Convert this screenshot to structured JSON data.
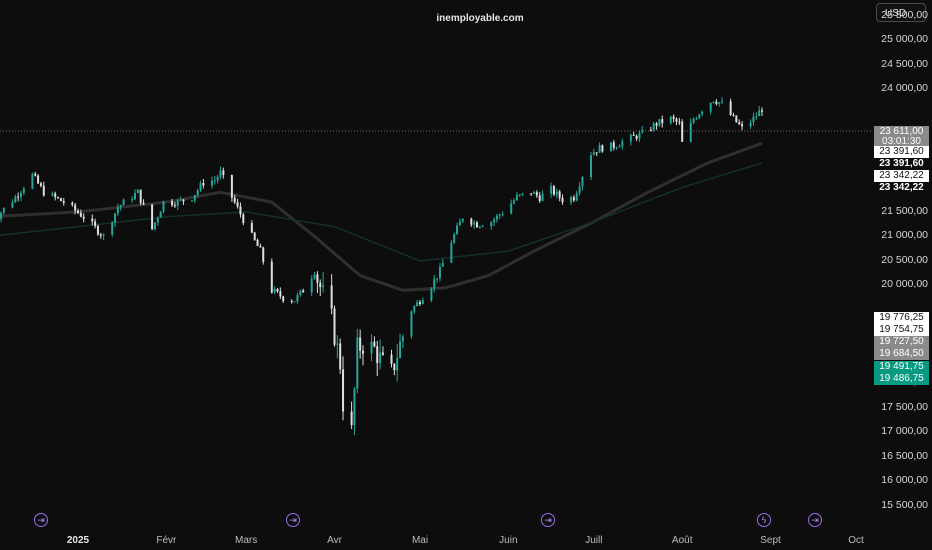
{
  "watermark": "inemployable.com",
  "currency": "USD",
  "colors": {
    "background": "#0d0d0d",
    "candle_up": "#26a69a",
    "candle_down": "#e0e0e0",
    "ma_short": "#2f2f2f",
    "ma_long": "#13302b",
    "event_icon": "#9c6cf0",
    "green_label": "#089981",
    "grey_label": "#8a8a8a"
  },
  "price_labels": [
    {
      "text": "23 611,00",
      "style": "grey"
    },
    {
      "text": "03:01:30",
      "style": "grey"
    },
    {
      "text": "23 391,60",
      "style": "white"
    },
    {
      "text": "23 391,60",
      "style": "dark"
    },
    {
      "text": "23 342,22",
      "style": "white"
    },
    {
      "text": "23 342,22",
      "style": "dark"
    },
    {
      "text": "19 776,25",
      "style": "white"
    },
    {
      "text": "19 754,75",
      "style": "white"
    },
    {
      "text": "19 727,50",
      "style": "grey"
    },
    {
      "text": "19 684,50",
      "style": "grey"
    },
    {
      "text": "19 491,75",
      "style": "green"
    },
    {
      "text": "19 486,75",
      "style": "green"
    }
  ],
  "events": [
    {
      "icon": "forward-icon",
      "glyph": "⇥"
    },
    {
      "icon": "forward-icon",
      "glyph": "⇥"
    },
    {
      "icon": "forward-icon",
      "glyph": "⇥"
    },
    {
      "icon": "lightning-icon",
      "glyph": "ϟ"
    },
    {
      "icon": "forward-icon",
      "glyph": "⇥"
    }
  ],
  "chart_data": {
    "type": "candlestick",
    "title": "",
    "xlabel": "",
    "ylabel": "",
    "ylim": [
      15300,
      25900
    ],
    "y_ticks": [
      "15 500,00",
      "16 000,00",
      "16 500,00",
      "17 000,00",
      "17 500,00",
      "18 000,00",
      "20 000,00",
      "20 500,00",
      "21 000,00",
      "21 500,00",
      "22 000,00",
      "24 000,00",
      "24 500,00",
      "25 000,00",
      "25 500,00"
    ],
    "y_tick_values": [
      15500,
      16000,
      16500,
      17000,
      17500,
      18000,
      20000,
      20500,
      21000,
      21500,
      22000,
      24000,
      24500,
      25000,
      25500
    ],
    "x_ticks": [
      "2025",
      "Févr",
      "Mars",
      "Avr",
      "Mai",
      "Juin",
      "Juill",
      "Août",
      "Sept",
      "Oct"
    ],
    "x_tick_dates": [
      "2025-01-01",
      "2025-02-01",
      "2025-03-01",
      "2025-04-01",
      "2025-05-01",
      "2025-06-01",
      "2025-07-01",
      "2025-08-01",
      "2025-09-01",
      "2025-10-01"
    ],
    "last_price": 23611.0,
    "series": [
      {
        "type": "close",
        "points": [
          [
            "2024-12-01",
            21200
          ],
          [
            "2024-12-05",
            21500
          ],
          [
            "2024-12-10",
            21800
          ],
          [
            "2024-12-16",
            22250
          ],
          [
            "2024-12-20",
            21900
          ],
          [
            "2024-12-27",
            21700
          ],
          [
            "2025-01-03",
            21400
          ],
          [
            "2025-01-10",
            21000
          ],
          [
            "2025-01-15",
            21600
          ],
          [
            "2025-01-22",
            21900
          ],
          [
            "2025-01-27",
            21150
          ],
          [
            "2025-01-31",
            21700
          ],
          [
            "2025-02-05",
            21700
          ],
          [
            "2025-02-10",
            21800
          ],
          [
            "2025-02-14",
            22100
          ],
          [
            "2025-02-18",
            22150
          ],
          [
            "2025-02-20",
            22300
          ],
          [
            "2025-02-24",
            21800
          ],
          [
            "2025-03-03",
            21000
          ],
          [
            "2025-03-06",
            20700
          ],
          [
            "2025-03-10",
            19900
          ],
          [
            "2025-03-14",
            19750
          ],
          [
            "2025-03-18",
            19700
          ],
          [
            "2025-03-21",
            19900
          ],
          [
            "2025-03-25",
            20300
          ],
          [
            "2025-03-28",
            19800
          ],
          [
            "2025-03-31",
            19300
          ],
          [
            "2025-04-03",
            18400
          ],
          [
            "2025-04-04",
            17600
          ],
          [
            "2025-04-07",
            17000
          ],
          [
            "2025-04-09",
            18700
          ],
          [
            "2025-04-11",
            18800
          ],
          [
            "2025-04-15",
            18700
          ],
          [
            "2025-04-18",
            18400
          ],
          [
            "2025-04-21",
            18200
          ],
          [
            "2025-04-24",
            18800
          ],
          [
            "2025-04-28",
            19500
          ],
          [
            "2025-05-01",
            19700
          ],
          [
            "2025-05-05",
            20000
          ],
          [
            "2025-05-08",
            20300
          ],
          [
            "2025-05-12",
            20900
          ],
          [
            "2025-05-16",
            21400
          ],
          [
            "2025-05-21",
            21250
          ],
          [
            "2025-05-26",
            21300
          ],
          [
            "2025-05-30",
            21500
          ],
          [
            "2025-06-04",
            21800
          ],
          [
            "2025-06-09",
            21900
          ],
          [
            "2025-06-12",
            21800
          ],
          [
            "2025-06-16",
            21950
          ],
          [
            "2025-06-20",
            21750
          ],
          [
            "2025-06-24",
            21800
          ],
          [
            "2025-06-30",
            22700
          ],
          [
            "2025-07-03",
            22800
          ],
          [
            "2025-07-08",
            22850
          ],
          [
            "2025-07-14",
            23000
          ],
          [
            "2025-07-18",
            23100
          ],
          [
            "2025-07-23",
            23300
          ],
          [
            "2025-07-28",
            23400
          ],
          [
            "2025-07-31",
            23300
          ],
          [
            "2025-08-01",
            22900
          ],
          [
            "2025-08-05",
            23400
          ],
          [
            "2025-08-08",
            23600
          ],
          [
            "2025-08-12",
            23800
          ],
          [
            "2025-08-15",
            23700
          ],
          [
            "2025-08-19",
            23400
          ],
          [
            "2025-08-22",
            23200
          ],
          [
            "2025-08-26",
            23400
          ],
          [
            "2025-08-29",
            23611
          ]
        ]
      },
      {
        "type": "moving_average_short",
        "points": [
          [
            "2024-12-01",
            21400
          ],
          [
            "2025-01-01",
            21500
          ],
          [
            "2025-02-01",
            21700
          ],
          [
            "2025-02-20",
            21900
          ],
          [
            "2025-03-10",
            21700
          ],
          [
            "2025-03-25",
            21000
          ],
          [
            "2025-04-10",
            20200
          ],
          [
            "2025-04-25",
            19900
          ],
          [
            "2025-05-10",
            19950
          ],
          [
            "2025-05-25",
            20200
          ],
          [
            "2025-06-10",
            20700
          ],
          [
            "2025-07-01",
            21300
          ],
          [
            "2025-07-20",
            21900
          ],
          [
            "2025-08-10",
            22500
          ],
          [
            "2025-08-29",
            22900
          ]
        ]
      },
      {
        "type": "moving_average_long",
        "points": [
          [
            "2024-12-01",
            21000
          ],
          [
            "2025-01-01",
            21200
          ],
          [
            "2025-02-01",
            21400
          ],
          [
            "2025-03-01",
            21500
          ],
          [
            "2025-04-01",
            21200
          ],
          [
            "2025-05-01",
            20500
          ],
          [
            "2025-06-01",
            20700
          ],
          [
            "2025-07-01",
            21300
          ],
          [
            "2025-08-01",
            22000
          ],
          [
            "2025-08-29",
            22500
          ]
        ]
      }
    ]
  }
}
